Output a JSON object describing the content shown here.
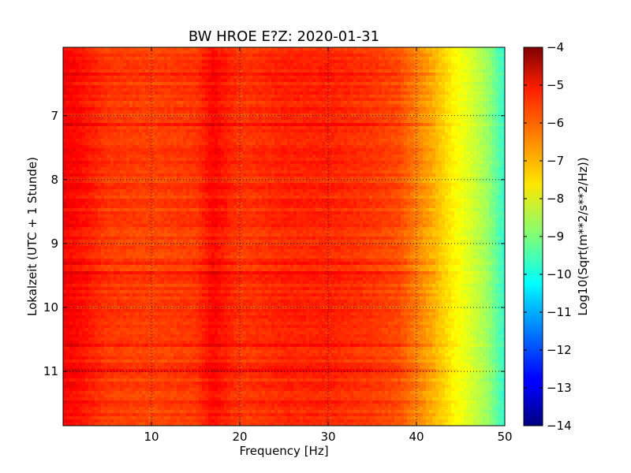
{
  "chart_data": {
    "type": "heatmap",
    "title": "BW HROE E?Z: 2020-01-31",
    "xlabel": "Frequency [Hz]",
    "ylabel": "Lokalzeit (UTC + 1 Stunde)",
    "colorbar_label": "Log10(Sqrt(m**2/s**2/Hz))",
    "xlim": [
      0,
      50
    ],
    "ylim": [
      5.93,
      11.85
    ],
    "y_axis_inverted": true,
    "x_ticks": [
      10,
      20,
      30,
      40,
      50
    ],
    "y_ticks": [
      7,
      8,
      9,
      10,
      11
    ],
    "colorbar_range": [
      -14,
      -4
    ],
    "colorbar_ticks": [
      -4,
      -5,
      -6,
      -7,
      -8,
      -9,
      -10,
      -11,
      -12,
      -13,
      -14
    ],
    "colormap": "jet",
    "grid": true,
    "grid_style": "dotted",
    "spectrum_profile": {
      "frequency_hz": [
        0,
        2,
        5,
        10,
        15,
        17,
        20,
        25,
        30,
        35,
        38,
        40,
        42,
        44,
        46,
        48,
        50
      ],
      "log10_amplitude": [
        -5.2,
        -5.4,
        -5.8,
        -5.9,
        -5.8,
        -5.3,
        -5.8,
        -5.6,
        -5.6,
        -5.8,
        -6.0,
        -6.5,
        -7.0,
        -7.6,
        -8.1,
        -8.7,
        -9.8
      ]
    }
  }
}
